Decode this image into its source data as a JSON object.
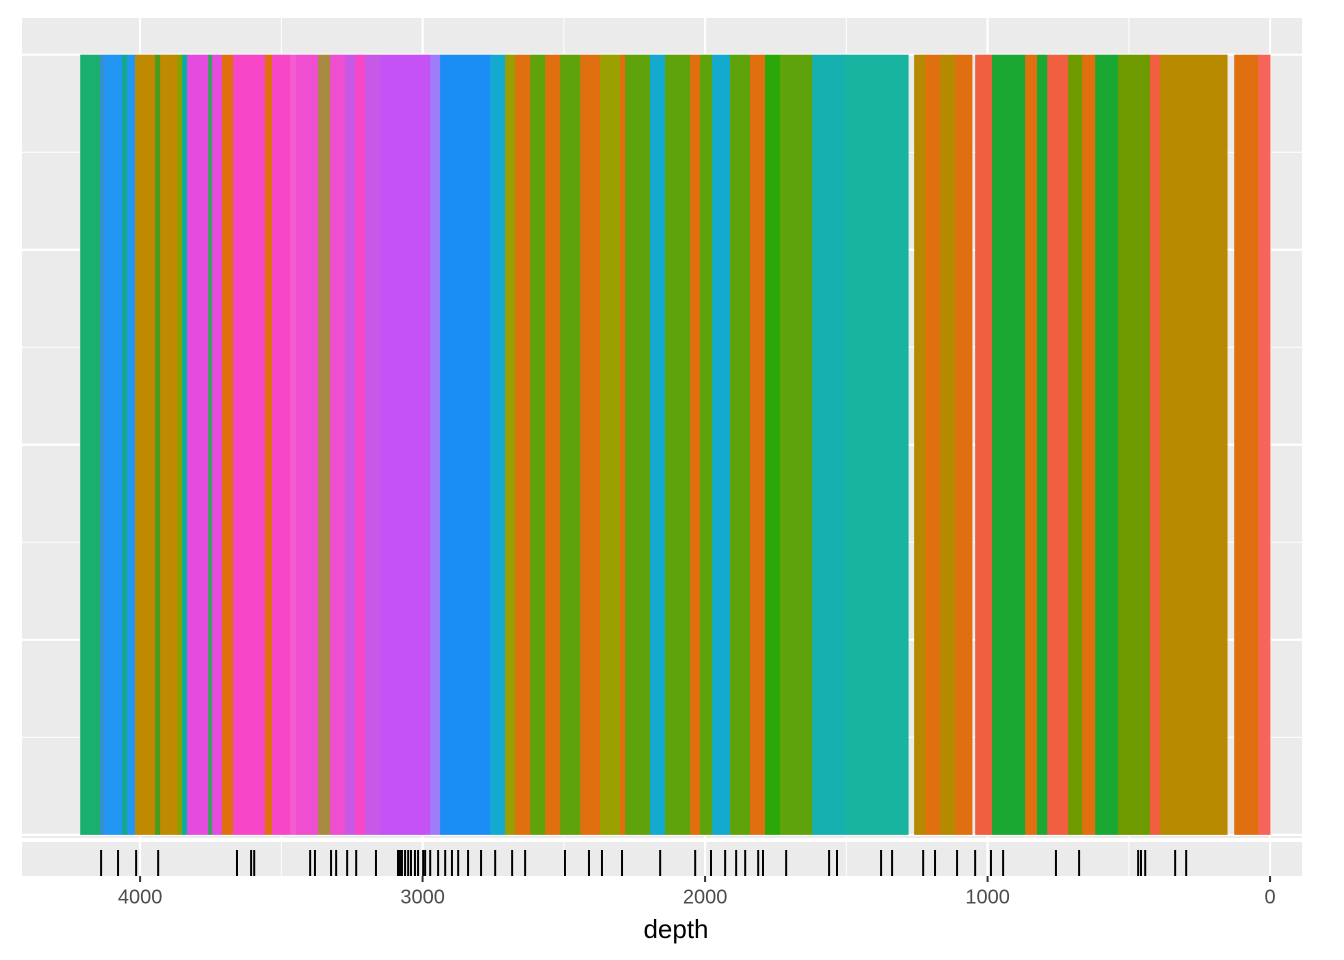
{
  "chart_data": {
    "type": "bands",
    "x_label": "depth",
    "xlim": [
      4418,
      -113
    ],
    "xticks": [
      4000,
      3000,
      2000,
      1000,
      0
    ],
    "x_minor": [
      3500,
      2500,
      1500,
      500
    ],
    "ylim": [
      -0.004,
      1.047
    ],
    "yticks": [
      0,
      0.25,
      0.5,
      0.75,
      1
    ],
    "y_minor": [
      0.125,
      0.375,
      0.625,
      0.875
    ],
    "grid": true,
    "segments": [
      {
        "start": 4212,
        "end": 4142,
        "color": "#1aae6f"
      },
      {
        "start": 4142,
        "end": 4127,
        "color": "#3a8fd0"
      },
      {
        "start": 4127,
        "end": 4064,
        "color": "#2196f3"
      },
      {
        "start": 4064,
        "end": 4046,
        "color": "#14a88a"
      },
      {
        "start": 4046,
        "end": 4018,
        "color": "#2196f3"
      },
      {
        "start": 4018,
        "end": 3947,
        "color": "#bf8a00"
      },
      {
        "start": 3947,
        "end": 3929,
        "color": "#4a9a20"
      },
      {
        "start": 3929,
        "end": 3869,
        "color": "#bf8a00"
      },
      {
        "start": 3869,
        "end": 3851,
        "color": "#8aa000"
      },
      {
        "start": 3851,
        "end": 3834,
        "color": "#00b0a0"
      },
      {
        "start": 3834,
        "end": 3759,
        "color": "#e64be0"
      },
      {
        "start": 3759,
        "end": 3745,
        "color": "#3aa060"
      },
      {
        "start": 3745,
        "end": 3710,
        "color": "#e64be0"
      },
      {
        "start": 3710,
        "end": 3671,
        "color": "#e0700f"
      },
      {
        "start": 3671,
        "end": 3558,
        "color": "#f746c8"
      },
      {
        "start": 3558,
        "end": 3533,
        "color": "#e0700f"
      },
      {
        "start": 3533,
        "end": 3469,
        "color": "#f746c8"
      },
      {
        "start": 3469,
        "end": 3448,
        "color": "#f55cd0"
      },
      {
        "start": 3448,
        "end": 3370,
        "color": "#ef4ed0"
      },
      {
        "start": 3370,
        "end": 3327,
        "color": "#a88a40"
      },
      {
        "start": 3327,
        "end": 3274,
        "color": "#ef4ed0"
      },
      {
        "start": 3274,
        "end": 3239,
        "color": "#c65ae6"
      },
      {
        "start": 3239,
        "end": 3204,
        "color": "#f746c8"
      },
      {
        "start": 3204,
        "end": 3150,
        "color": "#c65ae6"
      },
      {
        "start": 3150,
        "end": 2973,
        "color": "#c452f5"
      },
      {
        "start": 2973,
        "end": 2938,
        "color": "#9f7cf8"
      },
      {
        "start": 2938,
        "end": 2761,
        "color": "#1b8ef5"
      },
      {
        "start": 2761,
        "end": 2708,
        "color": "#14aad0"
      },
      {
        "start": 2708,
        "end": 2673,
        "color": "#9aa000"
      },
      {
        "start": 2673,
        "end": 2619,
        "color": "#e0700f"
      },
      {
        "start": 2619,
        "end": 2566,
        "color": "#5ea20c"
      },
      {
        "start": 2566,
        "end": 2513,
        "color": "#e0700f"
      },
      {
        "start": 2513,
        "end": 2442,
        "color": "#5ea20c"
      },
      {
        "start": 2442,
        "end": 2372,
        "color": "#e0700f"
      },
      {
        "start": 2372,
        "end": 2301,
        "color": "#9aa000"
      },
      {
        "start": 2301,
        "end": 2283,
        "color": "#e0700f"
      },
      {
        "start": 2283,
        "end": 2195,
        "color": "#5ea20c"
      },
      {
        "start": 2195,
        "end": 2142,
        "color": "#14aad0"
      },
      {
        "start": 2142,
        "end": 2053,
        "color": "#5ea20c"
      },
      {
        "start": 2053,
        "end": 2018,
        "color": "#e0700f"
      },
      {
        "start": 2018,
        "end": 1975,
        "color": "#5ea20c"
      },
      {
        "start": 1975,
        "end": 1912,
        "color": "#14aad0"
      },
      {
        "start": 1912,
        "end": 1841,
        "color": "#5ea20c"
      },
      {
        "start": 1841,
        "end": 1788,
        "color": "#e0700f"
      },
      {
        "start": 1788,
        "end": 1735,
        "color": "#2aa80a"
      },
      {
        "start": 1735,
        "end": 1621,
        "color": "#5ea20c"
      },
      {
        "start": 1621,
        "end": 1504,
        "color": "#16b0b0"
      },
      {
        "start": 1504,
        "end": 1281,
        "color": "#18b4a0"
      },
      {
        "start": 1260,
        "end": 1221,
        "color": "#b58a00"
      },
      {
        "start": 1221,
        "end": 1168,
        "color": "#e0700f"
      },
      {
        "start": 1168,
        "end": 1115,
        "color": "#b58a00"
      },
      {
        "start": 1115,
        "end": 1055,
        "color": "#e0700f"
      },
      {
        "start": 1044,
        "end": 984,
        "color": "#f06040"
      },
      {
        "start": 984,
        "end": 867,
        "color": "#1aa832"
      },
      {
        "start": 867,
        "end": 825,
        "color": "#e0700f"
      },
      {
        "start": 825,
        "end": 789,
        "color": "#1aa832"
      },
      {
        "start": 789,
        "end": 715,
        "color": "#f06040"
      },
      {
        "start": 715,
        "end": 665,
        "color": "#6e9a00"
      },
      {
        "start": 665,
        "end": 619,
        "color": "#e0700f"
      },
      {
        "start": 619,
        "end": 538,
        "color": "#1aa832"
      },
      {
        "start": 538,
        "end": 425,
        "color": "#6e9a00"
      },
      {
        "start": 425,
        "end": 389,
        "color": "#f06040"
      },
      {
        "start": 389,
        "end": 152,
        "color": "#b88a00"
      },
      {
        "start": 127,
        "end": 42,
        "color": "#e0700f"
      },
      {
        "start": 42,
        "end": 0,
        "color": "#f7645a"
      }
    ],
    "rug": [
      4138,
      4078,
      4014,
      3936,
      3657,
      3607,
      3596,
      3398,
      3381,
      3324,
      3306,
      3267,
      3235,
      3165,
      3087,
      3080,
      3073,
      3062,
      3051,
      3041,
      3027,
      3016,
      2998,
      2991,
      2973,
      2945,
      2920,
      2896,
      2874,
      2839,
      2793,
      2743,
      2683,
      2637,
      2496,
      2411,
      2365,
      2294,
      2159,
      2035,
      1979,
      1929,
      1890,
      1858,
      1812,
      1795,
      1713,
      1561,
      1533,
      1377,
      1338,
      1228,
      1186,
      1108,
      1044,
      988,
      945,
      758,
      676,
      467,
      457,
      442,
      336,
      297
    ]
  }
}
